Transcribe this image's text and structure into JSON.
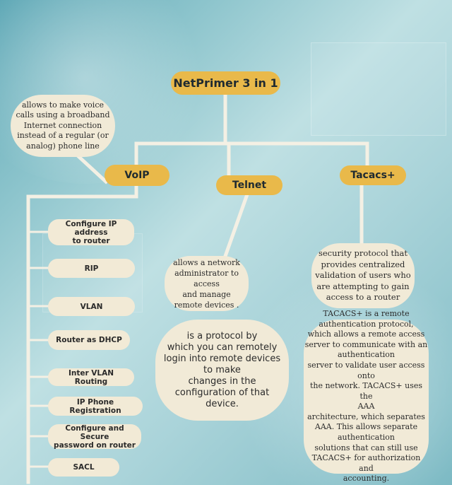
{
  "title": "NetPrimer 3 in 1",
  "topics": {
    "voip": {
      "label": "VoIP",
      "description": "allows to make voice\ncalls using a broadband\nInternet connection\ninstead of a regular (or\nanalog) phone line",
      "items": [
        "Configure IP address\nto router",
        "RIP",
        "VLAN",
        "Router as DHCP",
        "Inter VLAN Routing",
        "IP Phone Registration",
        "Configure and Secure\npassword on router",
        "SACL"
      ]
    },
    "telnet": {
      "label": "Telnet",
      "description": "allows a network\nadministrator to access\nand manage\nremote devices .",
      "detail": "is a protocol by\nwhich you can remotely\nlogin into remote devices\nto make\nchanges in the\nconfiguration of that\ndevice."
    },
    "tacacs": {
      "label": "Tacacs+",
      "description": "security protocol that\nprovides centralized\nvalidation of users who\nare attempting to gain\naccess to a router",
      "detail": "TACACS+ is a remote\nauthentication protocol,\nwhich allows a remote access\nserver to communicate with an\nauthentication\nserver to validate user access onto\nthe network. TACACS+ uses the\nAAA\narchitecture, which separates\nAAA. This allows separate\nauthentication\nsolutions that can still use\nTACACS+ for authorization and\naccounting."
    }
  },
  "colors": {
    "pill": "#e9b94a",
    "bubble": "#f1ead7",
    "connector": "#f4f0e4"
  }
}
